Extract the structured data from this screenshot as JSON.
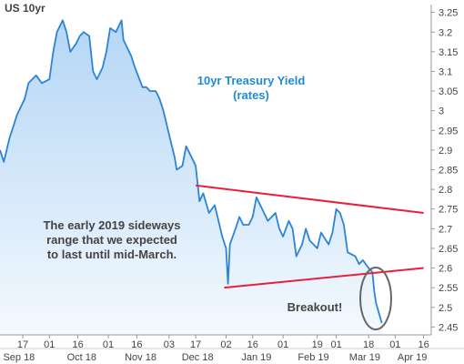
{
  "chart_data": {
    "type": "area",
    "title": "US 10yr",
    "annotation_title": [
      "10yr Treasury Yield",
      "(rates)"
    ],
    "annotation_range": [
      "The early 2019 sideways",
      "range that we expected",
      "to last until mid-March."
    ],
    "annotation_breakout": "Breakout!",
    "y_ticks": [
      "3.25",
      "3.2",
      "3.15",
      "3.1",
      "3.05",
      "3",
      "2.95",
      "2.9",
      "2.85",
      "2.8",
      "2.75",
      "2.7",
      "2.65",
      "2.6",
      "2.55",
      "2.5",
      "2.45"
    ],
    "ylim": [
      2.43,
      3.27
    ],
    "x_ticks": [
      {
        "label": "17",
        "date": "2018-09-17"
      },
      {
        "label": "01",
        "date": "2018-10-01"
      },
      {
        "label": "16",
        "date": "2018-10-16"
      },
      {
        "label": "01",
        "date": "2018-11-01"
      },
      {
        "label": "16",
        "date": "2018-11-16"
      },
      {
        "label": "03",
        "date": "2018-12-03"
      },
      {
        "label": "17",
        "date": "2018-12-17"
      },
      {
        "label": "02",
        "date": "2019-01-02"
      },
      {
        "label": "16",
        "date": "2019-01-16"
      },
      {
        "label": "01",
        "date": "2019-02-01"
      },
      {
        "label": "19",
        "date": "2019-02-19"
      },
      {
        "label": "01",
        "date": "2019-03-01"
      },
      {
        "label": "18",
        "date": "2019-03-18"
      },
      {
        "label": "01",
        "date": "2019-04-01"
      },
      {
        "label": "16",
        "date": "2019-04-16"
      }
    ],
    "month_labels": [
      {
        "label": "Sep 18",
        "date": "2018-09-15"
      },
      {
        "label": "Oct 18",
        "date": "2018-10-18"
      },
      {
        "label": "Nov 18",
        "date": "2018-11-18"
      },
      {
        "label": "Dec 18",
        "date": "2018-12-18"
      },
      {
        "label": "Jan 19",
        "date": "2019-01-18"
      },
      {
        "label": "Feb 19",
        "date": "2019-02-17"
      },
      {
        "label": "Mar 19",
        "date": "2019-03-16"
      },
      {
        "label": "Apr 19",
        "date": "2019-04-10"
      }
    ],
    "xlim": [
      "2018-09-05",
      "2019-04-20"
    ],
    "series": [
      {
        "values": [
          [
            "2018-09-05",
            2.9
          ],
          [
            "2018-09-07",
            2.87
          ],
          [
            "2018-09-10",
            2.93
          ],
          [
            "2018-09-12",
            2.96
          ],
          [
            "2018-09-14",
            2.99
          ],
          [
            "2018-09-18",
            3.03
          ],
          [
            "2018-09-20",
            3.07
          ],
          [
            "2018-09-24",
            3.09
          ],
          [
            "2018-09-27",
            3.07
          ],
          [
            "2018-10-01",
            3.08
          ],
          [
            "2018-10-03",
            3.15
          ],
          [
            "2018-10-05",
            3.2
          ],
          [
            "2018-10-08",
            3.23
          ],
          [
            "2018-10-10",
            3.2
          ],
          [
            "2018-10-12",
            3.15
          ],
          [
            "2018-10-15",
            3.17
          ],
          [
            "2018-10-17",
            3.19
          ],
          [
            "2018-10-19",
            3.2
          ],
          [
            "2018-10-22",
            3.19
          ],
          [
            "2018-10-24",
            3.1
          ],
          [
            "2018-10-26",
            3.08
          ],
          [
            "2018-10-29",
            3.11
          ],
          [
            "2018-10-31",
            3.15
          ],
          [
            "2018-11-02",
            3.21
          ],
          [
            "2018-11-05",
            3.2
          ],
          [
            "2018-11-08",
            3.23
          ],
          [
            "2018-11-09",
            3.18
          ],
          [
            "2018-11-13",
            3.14
          ],
          [
            "2018-11-15",
            3.11
          ],
          [
            "2018-11-19",
            3.06
          ],
          [
            "2018-11-21",
            3.06
          ],
          [
            "2018-11-23",
            3.05
          ],
          [
            "2018-11-26",
            3.05
          ],
          [
            "2018-11-28",
            3.03
          ],
          [
            "2018-11-30",
            3.0
          ],
          [
            "2018-12-04",
            2.92
          ],
          [
            "2018-12-06",
            2.88
          ],
          [
            "2018-12-07",
            2.85
          ],
          [
            "2018-12-10",
            2.86
          ],
          [
            "2018-12-12",
            2.91
          ],
          [
            "2018-12-14",
            2.89
          ],
          [
            "2018-12-17",
            2.86
          ],
          [
            "2018-12-19",
            2.77
          ],
          [
            "2018-12-21",
            2.79
          ],
          [
            "2018-12-24",
            2.74
          ],
          [
            "2018-12-27",
            2.76
          ],
          [
            "2018-12-31",
            2.68
          ],
          [
            "2019-01-02",
            2.65
          ],
          [
            "2019-01-03",
            2.56
          ],
          [
            "2019-01-04",
            2.66
          ],
          [
            "2019-01-07",
            2.7
          ],
          [
            "2019-01-09",
            2.73
          ],
          [
            "2019-01-11",
            2.71
          ],
          [
            "2019-01-14",
            2.71
          ],
          [
            "2019-01-16",
            2.73
          ],
          [
            "2019-01-18",
            2.78
          ],
          [
            "2019-01-22",
            2.74
          ],
          [
            "2019-01-24",
            2.72
          ],
          [
            "2019-01-28",
            2.74
          ],
          [
            "2019-01-30",
            2.7
          ],
          [
            "2019-02-01",
            2.68
          ],
          [
            "2019-02-04",
            2.72
          ],
          [
            "2019-02-06",
            2.7
          ],
          [
            "2019-02-08",
            2.63
          ],
          [
            "2019-02-11",
            2.66
          ],
          [
            "2019-02-13",
            2.7
          ],
          [
            "2019-02-15",
            2.67
          ],
          [
            "2019-02-19",
            2.65
          ],
          [
            "2019-02-21",
            2.69
          ],
          [
            "2019-02-25",
            2.66
          ],
          [
            "2019-02-27",
            2.69
          ],
          [
            "2019-03-01",
            2.75
          ],
          [
            "2019-03-03",
            2.74
          ],
          [
            "2019-03-05",
            2.71
          ],
          [
            "2019-03-07",
            2.64
          ],
          [
            "2019-03-11",
            2.63
          ],
          [
            "2019-03-13",
            2.61
          ],
          [
            "2019-03-15",
            2.62
          ],
          [
            "2019-03-18",
            2.6
          ],
          [
            "2019-03-20",
            2.59
          ],
          [
            "2019-03-21",
            2.54
          ],
          [
            "2019-03-22",
            2.51
          ],
          [
            "2019-03-25",
            2.46
          ]
        ]
      }
    ],
    "trendlines": [
      {
        "name": "upper",
        "from": [
          "2018-12-17",
          2.81
        ],
        "to": [
          "2019-04-16",
          2.74
        ]
      },
      {
        "name": "lower",
        "from": [
          "2019-01-01",
          2.55
        ],
        "to": [
          "2019-04-16",
          2.6
        ]
      }
    ],
    "colors": {
      "line": "#2c84d6",
      "fill_top": "#b4d6f5",
      "fill_bottom": "#f4f9fe",
      "trend": "#e8203c",
      "text": "#444444",
      "title_blue": "#1e8ad8",
      "axis": "#999999"
    }
  }
}
